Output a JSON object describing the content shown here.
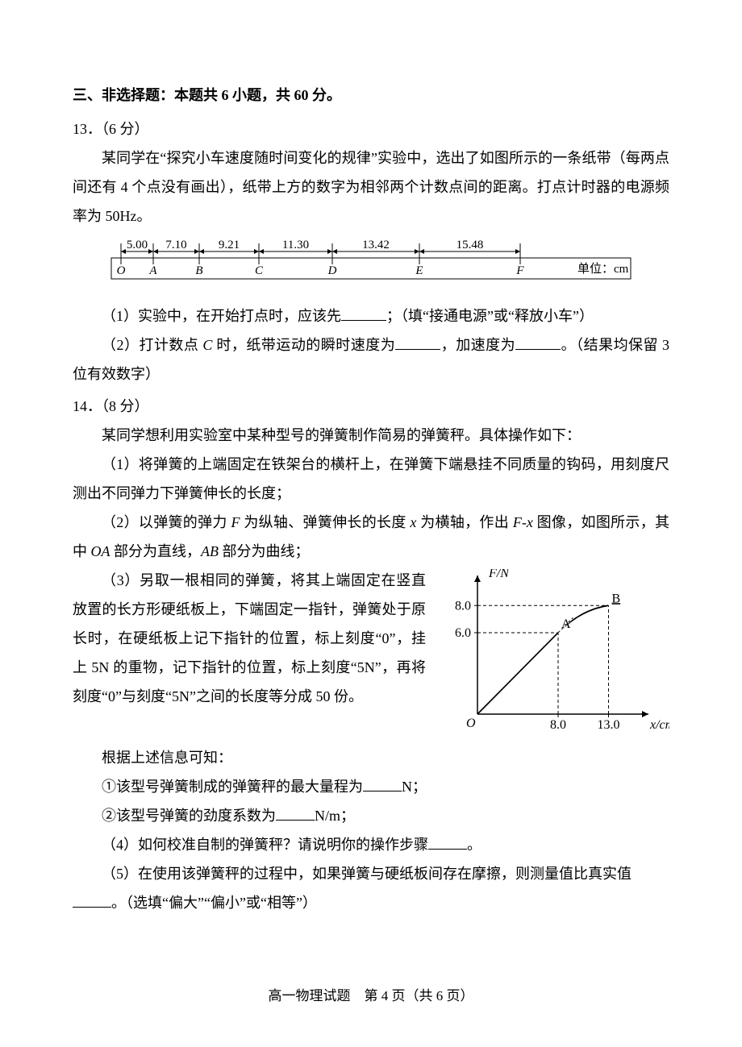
{
  "section_heading": "三、非选择题：本题共 6 小题，共 60 分。",
  "q13": {
    "number": "13．（6 分）",
    "p1": "某同学在“探究小车速度随时间变化的规律”实验中，选出了如图所示的一条纸带（每两点间还有 4 个点没有画出），纸带上方的数字为相邻两个计数点间的距离。打点计时器的电源频率为 50Hz。",
    "tape": {
      "distances": [
        "5.00",
        "7.10",
        "9.21",
        "11.30",
        "13.42",
        "15.48"
      ],
      "unit_label": "单位：cm",
      "points": [
        "O",
        "A",
        "B",
        "C",
        "D",
        "E",
        "F"
      ],
      "colors": {
        "stroke": "#000000",
        "fill": "#ffffff"
      },
      "font_size": 15
    },
    "sub1_pre": "（1）实验中，在开始打点时，应该先",
    "sub1_post": "；（填“接通电源”或“释放小车”）",
    "sub2_pre": "（2）打计数点 ",
    "sub2_c": "C",
    "sub2_mid1": " 时，纸带运动的瞬时速度为",
    "sub2_mid2": "，加速度为",
    "sub2_post": "。（结果均保留 3 位有效数字）"
  },
  "q14": {
    "number": "14．（8 分）",
    "p1": "某同学想利用实验室中某种型号的弹簧制作简易的弹簧秤。具体操作如下：",
    "s1": "（1）将弹簧的上端固定在铁架台的横杆上，在弹簧下端悬挂不同质量的钩码，用刻度尺测出不同弹力下弹簧伸长的长度；",
    "s2_pre": "（2）以弹簧的弹力 ",
    "s2_F": "F",
    "s2_mid1": " 为纵轴、弹簧伸长的长度 ",
    "s2_x": "x",
    "s2_mid2": " 为横轴，作出 ",
    "s2_Fx": "F-x",
    "s2_mid3": " 图像，如图所示，其中 ",
    "s2_OA": "OA",
    "s2_mid4": " 部分为直线，",
    "s2_AB": "AB",
    "s2_end": " 部分为曲线；",
    "s3": "（3）另取一根相同的弹簧，将其上端固定在竖直放置的长方形硬纸板上，下端固定一指针，弹簧处于原长时，在硬纸板上记下指针的位置，标上刻度“0”，挂上 5N 的重物，记下指针的位置，标上刻度“5N”，再将刻度“0”与刻度“5N”之间的长度等分成 50 份。",
    "info": "根据上述信息可知：",
    "q1_pre": "①该型号弹簧制成的弹簧秤的最大量程为",
    "q1_post": "N；",
    "q2_pre": "②该型号弹簧的劲度系数为",
    "q2_post": "N/m；",
    "s4_pre": "（4）如何校准自制的弹簧秤？请说明你的操作步骤",
    "s4_post": "。",
    "s5_pre": "（5）在使用该弹簧秤的过程中，如果弹簧与硬纸板间存在摩擦，则测量值比真实值",
    "s5_post": "。（选填“偏大”“偏小”或“相等”）",
    "graph": {
      "ylabel": "F/N",
      "xlabel": "x/cm",
      "yticks": [
        "6.0",
        "8.0"
      ],
      "xticks": [
        "8.0",
        "13.0"
      ],
      "origin": "O",
      "ptA": "A",
      "ptB": "B",
      "colors": {
        "axis": "#000000",
        "dash": "#000000",
        "curve": "#000000"
      },
      "axis_font": 16,
      "xlim": [
        0,
        16
      ],
      "ylim": [
        0,
        9.5
      ],
      "A": [
        8.0,
        6.0
      ],
      "B": [
        13.0,
        8.0
      ]
    }
  },
  "footer": {
    "left": "高一物理试题",
    "right": "第 4 页（共 6 页）"
  }
}
